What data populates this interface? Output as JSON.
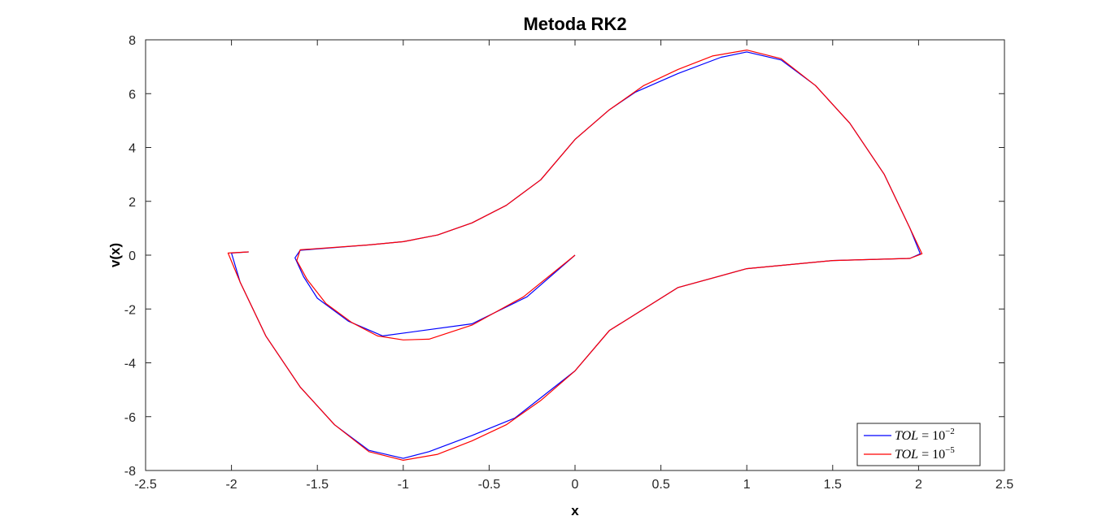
{
  "chart_data": {
    "type": "line",
    "title": "Metoda RK2",
    "xlabel": "x",
    "ylabel": "v(x)",
    "xlim": [
      -2.5,
      2.5
    ],
    "ylim": [
      -8,
      8
    ],
    "x_ticks": [
      -2.5,
      -2,
      -1.5,
      -1,
      -0.5,
      0,
      0.5,
      1,
      1.5,
      2,
      2.5
    ],
    "y_ticks": [
      -8,
      -6,
      -4,
      -2,
      0,
      2,
      4,
      6,
      8
    ],
    "x_tick_labels": [
      "-2.5",
      "-2",
      "-1.5",
      "-1",
      "-0.5",
      "0",
      "0.5",
      "1",
      "1.5",
      "2",
      "2.5"
    ],
    "y_tick_labels": [
      "-8",
      "-6",
      "-4",
      "-2",
      "0",
      "2",
      "4",
      "6",
      "8"
    ],
    "grid": false,
    "legend_position": "bottom-right",
    "series": [
      {
        "name": "TOL = 10^{-2}",
        "legend": {
          "lhs": "TOL",
          "eq": "=",
          "base": "10",
          "exp": "−2"
        },
        "color": "#0000ff",
        "points": [
          [
            0.0,
            0.0
          ],
          [
            -0.28,
            -1.55
          ],
          [
            -0.6,
            -2.55
          ],
          [
            -1.12,
            -3.0
          ],
          [
            -1.32,
            -2.45
          ],
          [
            -1.5,
            -1.6
          ],
          [
            -1.58,
            -0.8
          ],
          [
            -1.63,
            -0.1
          ],
          [
            -1.6,
            0.18
          ],
          [
            -1.2,
            0.38
          ],
          [
            -1.0,
            0.5
          ],
          [
            -0.8,
            0.75
          ],
          [
            -0.6,
            1.2
          ],
          [
            -0.4,
            1.85
          ],
          [
            -0.2,
            2.8
          ],
          [
            0.0,
            4.3
          ],
          [
            0.2,
            5.4
          ],
          [
            0.35,
            6.05
          ],
          [
            0.6,
            6.75
          ],
          [
            0.85,
            7.35
          ],
          [
            1.0,
            7.55
          ],
          [
            1.2,
            7.25
          ],
          [
            1.4,
            6.3
          ],
          [
            1.6,
            4.9
          ],
          [
            1.8,
            3.0
          ],
          [
            1.95,
            1.0
          ],
          [
            2.01,
            0.05
          ],
          [
            1.95,
            -0.12
          ],
          [
            1.5,
            -0.2
          ],
          [
            1.0,
            -0.5
          ],
          [
            0.6,
            -1.2
          ],
          [
            0.2,
            -2.8
          ],
          [
            0.0,
            -4.3
          ],
          [
            -0.2,
            -5.3
          ],
          [
            -0.35,
            -6.05
          ],
          [
            -0.6,
            -6.7
          ],
          [
            -0.85,
            -7.3
          ],
          [
            -1.0,
            -7.55
          ],
          [
            -1.2,
            -7.25
          ],
          [
            -1.4,
            -6.3
          ],
          [
            -1.6,
            -4.9
          ],
          [
            -1.8,
            -3.0
          ],
          [
            -1.95,
            -1.0
          ],
          [
            -2.0,
            0.08
          ],
          [
            -1.9,
            0.12
          ]
        ]
      },
      {
        "name": "TOL = 10^{-5}",
        "legend": {
          "lhs": "TOL",
          "eq": "=",
          "base": "10",
          "exp": "−5"
        },
        "color": "#ff0000",
        "points": [
          [
            0.0,
            0.0
          ],
          [
            -0.3,
            -1.55
          ],
          [
            -0.6,
            -2.6
          ],
          [
            -0.85,
            -3.12
          ],
          [
            -1.0,
            -3.15
          ],
          [
            -1.15,
            -3.0
          ],
          [
            -1.3,
            -2.5
          ],
          [
            -1.45,
            -1.8
          ],
          [
            -1.56,
            -0.9
          ],
          [
            -1.62,
            -0.2
          ],
          [
            -1.6,
            0.2
          ],
          [
            -1.2,
            0.38
          ],
          [
            -1.0,
            0.5
          ],
          [
            -0.8,
            0.75
          ],
          [
            -0.6,
            1.2
          ],
          [
            -0.4,
            1.85
          ],
          [
            -0.2,
            2.8
          ],
          [
            0.0,
            4.3
          ],
          [
            0.2,
            5.4
          ],
          [
            0.4,
            6.3
          ],
          [
            0.6,
            6.9
          ],
          [
            0.8,
            7.4
          ],
          [
            1.0,
            7.62
          ],
          [
            1.2,
            7.3
          ],
          [
            1.4,
            6.3
          ],
          [
            1.6,
            4.9
          ],
          [
            1.8,
            3.0
          ],
          [
            1.95,
            1.0
          ],
          [
            2.02,
            0.05
          ],
          [
            1.95,
            -0.12
          ],
          [
            1.5,
            -0.2
          ],
          [
            1.0,
            -0.5
          ],
          [
            0.6,
            -1.2
          ],
          [
            0.2,
            -2.8
          ],
          [
            0.0,
            -4.3
          ],
          [
            -0.2,
            -5.4
          ],
          [
            -0.4,
            -6.3
          ],
          [
            -0.6,
            -6.9
          ],
          [
            -0.8,
            -7.4
          ],
          [
            -1.0,
            -7.62
          ],
          [
            -1.2,
            -7.3
          ],
          [
            -1.4,
            -6.3
          ],
          [
            -1.6,
            -4.9
          ],
          [
            -1.8,
            -3.0
          ],
          [
            -1.95,
            -1.0
          ],
          [
            -2.02,
            0.08
          ],
          [
            -1.9,
            0.12
          ]
        ]
      }
    ]
  }
}
